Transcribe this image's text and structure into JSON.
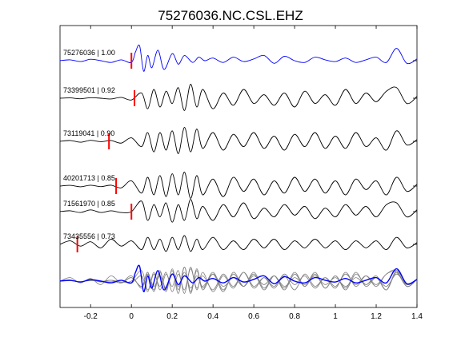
{
  "chart_data": {
    "type": "line",
    "title": "75276036.NC.CSL.EHZ",
    "xlabel": "",
    "ylabel": "",
    "xlim": [
      -0.35,
      1.4
    ],
    "xticks": [
      -0.2,
      0,
      0.2,
      0.4,
      0.6,
      0.8,
      1,
      1.2,
      1.4
    ],
    "xtick_labels": [
      "-0.2",
      "0",
      "0.2",
      "0.4",
      "0.6",
      "0.8",
      "1",
      "1.2",
      "1.4"
    ],
    "grid": false,
    "legend": "none",
    "colors": {
      "reference": "#0000ff",
      "trace": "#000000",
      "stack_trace": "#808080",
      "pick": "#ff0000",
      "axes": "#000000"
    },
    "series": [
      {
        "id": "75276036",
        "name": "75276036 | 1.00",
        "color": "#0000ff",
        "pick_time": 0.0,
        "x": [
          -0.35,
          -0.3,
          -0.25,
          -0.2,
          -0.15,
          -0.1,
          -0.05,
          0.0,
          0.02,
          0.04,
          0.06,
          0.08,
          0.1,
          0.13,
          0.16,
          0.2,
          0.23,
          0.26,
          0.3,
          0.33,
          0.36,
          0.4,
          0.45,
          0.5,
          0.55,
          0.6,
          0.65,
          0.7,
          0.75,
          0.8,
          0.85,
          0.9,
          0.95,
          1.0,
          1.05,
          1.1,
          1.15,
          1.2,
          1.25,
          1.3,
          1.35,
          1.4
        ],
        "y": [
          0.0,
          0.05,
          -0.05,
          0.08,
          0.0,
          -0.1,
          0.05,
          -0.1,
          0.5,
          0.85,
          -0.6,
          0.3,
          -0.4,
          0.6,
          -0.5,
          0.4,
          -0.2,
          0.3,
          -0.1,
          0.2,
          0.0,
          0.15,
          -0.1,
          0.2,
          -0.05,
          0.1,
          0.3,
          -0.15,
          0.25,
          0.0,
          -0.1,
          0.2,
          0.05,
          -0.05,
          0.15,
          -0.1,
          0.05,
          0.2,
          -0.1,
          0.7,
          -0.15,
          0.1
        ]
      },
      {
        "id": "73399501",
        "name": "73399501 | 0.92",
        "color": "#000000",
        "pick_time": 0.015,
        "x": [
          -0.35,
          -0.3,
          -0.25,
          -0.2,
          -0.15,
          -0.1,
          -0.05,
          0.0,
          0.05,
          0.08,
          0.11,
          0.14,
          0.17,
          0.2,
          0.23,
          0.26,
          0.29,
          0.32,
          0.35,
          0.4,
          0.45,
          0.5,
          0.55,
          0.6,
          0.65,
          0.7,
          0.75,
          0.8,
          0.85,
          0.9,
          0.95,
          1.0,
          1.05,
          1.1,
          1.15,
          1.2,
          1.25,
          1.3,
          1.35,
          1.4
        ],
        "y": [
          0.0,
          0.02,
          -0.03,
          0.03,
          0.0,
          -0.04,
          0.05,
          -0.1,
          0.3,
          -0.6,
          0.5,
          -0.5,
          0.4,
          -0.3,
          0.6,
          -0.7,
          0.8,
          -0.5,
          0.5,
          -0.6,
          0.3,
          -0.4,
          0.5,
          -0.3,
          0.2,
          -0.4,
          0.3,
          -0.5,
          0.4,
          -0.3,
          0.2,
          -0.4,
          0.5,
          -0.3,
          0.3,
          -0.2,
          0.4,
          0.6,
          -0.3,
          0.1
        ]
      },
      {
        "id": "73119041",
        "name": "73119041 | 0.90",
        "color": "#000000",
        "pick_time": -0.11,
        "x": [
          -0.35,
          -0.3,
          -0.25,
          -0.2,
          -0.15,
          -0.1,
          -0.05,
          0.0,
          0.05,
          0.08,
          0.11,
          0.14,
          0.17,
          0.2,
          0.23,
          0.26,
          0.29,
          0.32,
          0.35,
          0.4,
          0.45,
          0.5,
          0.55,
          0.6,
          0.65,
          0.7,
          0.75,
          0.8,
          0.85,
          0.9,
          0.95,
          1.0,
          1.05,
          1.1,
          1.15,
          1.2,
          1.25,
          1.3,
          1.35,
          1.4
        ],
        "y": [
          0.0,
          0.05,
          -0.05,
          0.06,
          -0.02,
          0.05,
          -0.1,
          0.2,
          -0.3,
          0.5,
          -0.6,
          0.5,
          -0.5,
          0.6,
          -0.7,
          0.8,
          -0.6,
          0.7,
          -0.4,
          0.5,
          -0.5,
          0.4,
          -0.3,
          0.5,
          -0.4,
          0.3,
          -0.5,
          0.4,
          -0.3,
          0.5,
          -0.4,
          0.3,
          -0.4,
          0.5,
          -0.3,
          0.2,
          -0.5,
          0.6,
          -0.2,
          0.1
        ]
      },
      {
        "id": "40201713",
        "name": "40201713 | 0.85",
        "color": "#000000",
        "pick_time": -0.075,
        "x": [
          -0.35,
          -0.3,
          -0.25,
          -0.2,
          -0.15,
          -0.1,
          -0.05,
          0.0,
          0.05,
          0.08,
          0.11,
          0.14,
          0.17,
          0.2,
          0.23,
          0.26,
          0.29,
          0.32,
          0.35,
          0.4,
          0.45,
          0.5,
          0.55,
          0.6,
          0.65,
          0.7,
          0.75,
          0.8,
          0.85,
          0.9,
          0.95,
          1.0,
          1.05,
          1.1,
          1.15,
          1.2,
          1.25,
          1.3,
          1.35,
          1.4
        ],
        "y": [
          0.0,
          0.04,
          -0.04,
          0.05,
          -0.03,
          0.05,
          -0.1,
          0.3,
          -0.4,
          0.5,
          -0.5,
          0.6,
          -0.6,
          0.7,
          -0.5,
          0.8,
          -0.7,
          0.6,
          -0.5,
          0.4,
          -0.6,
          0.5,
          -0.3,
          0.4,
          -0.5,
          0.3,
          -0.4,
          0.5,
          -0.3,
          0.4,
          -0.4,
          0.3,
          -0.5,
          0.4,
          -0.2,
          0.3,
          -0.5,
          0.5,
          -0.3,
          0.1
        ]
      },
      {
        "id": "71561970",
        "name": "71561970 | 0.85",
        "color": "#000000",
        "pick_time": 0.0,
        "x": [
          -0.35,
          -0.3,
          -0.25,
          -0.2,
          -0.15,
          -0.1,
          -0.05,
          0.0,
          0.05,
          0.08,
          0.11,
          0.14,
          0.17,
          0.2,
          0.23,
          0.26,
          0.29,
          0.32,
          0.35,
          0.4,
          0.45,
          0.5,
          0.55,
          0.6,
          0.65,
          0.7,
          0.75,
          0.8,
          0.85,
          0.9,
          0.95,
          1.0,
          1.05,
          1.1,
          1.15,
          1.2,
          1.25,
          1.3,
          1.35,
          1.4
        ],
        "y": [
          0.0,
          0.05,
          -0.05,
          0.1,
          -0.05,
          0.05,
          -0.05,
          0.0,
          0.6,
          -0.5,
          0.4,
          -0.3,
          0.5,
          -0.6,
          0.4,
          -0.5,
          0.7,
          -0.4,
          0.3,
          -0.5,
          0.4,
          -0.3,
          0.5,
          -0.4,
          0.2,
          -0.3,
          0.4,
          -0.2,
          0.3,
          -0.4,
          0.2,
          -0.3,
          0.4,
          -0.2,
          0.3,
          -0.3,
          0.4,
          0.5,
          -0.3,
          0.1
        ]
      },
      {
        "id": "73435556",
        "name": "73435556 | 0.73",
        "color": "#000000",
        "pick_time": -0.265,
        "x": [
          -0.35,
          -0.3,
          -0.25,
          -0.2,
          -0.15,
          -0.1,
          -0.05,
          0.0,
          0.05,
          0.08,
          0.11,
          0.14,
          0.17,
          0.2,
          0.23,
          0.26,
          0.29,
          0.32,
          0.35,
          0.4,
          0.45,
          0.5,
          0.55,
          0.6,
          0.65,
          0.7,
          0.75,
          0.8,
          0.85,
          0.9,
          0.95,
          1.0,
          1.05,
          1.1,
          1.15,
          1.2,
          1.25,
          1.3,
          1.35,
          1.4
        ],
        "y": [
          0.0,
          0.2,
          -0.1,
          0.15,
          -0.2,
          0.3,
          -0.1,
          0.2,
          -0.3,
          0.4,
          -0.3,
          0.3,
          -0.4,
          0.4,
          -0.3,
          0.5,
          -0.4,
          0.3,
          -0.3,
          0.4,
          -0.3,
          0.2,
          -0.3,
          0.3,
          -0.2,
          0.3,
          -0.3,
          0.2,
          -0.2,
          0.3,
          -0.2,
          0.2,
          -0.3,
          0.2,
          -0.2,
          0.2,
          -0.3,
          0.4,
          -0.2,
          0.1
        ]
      }
    ]
  }
}
